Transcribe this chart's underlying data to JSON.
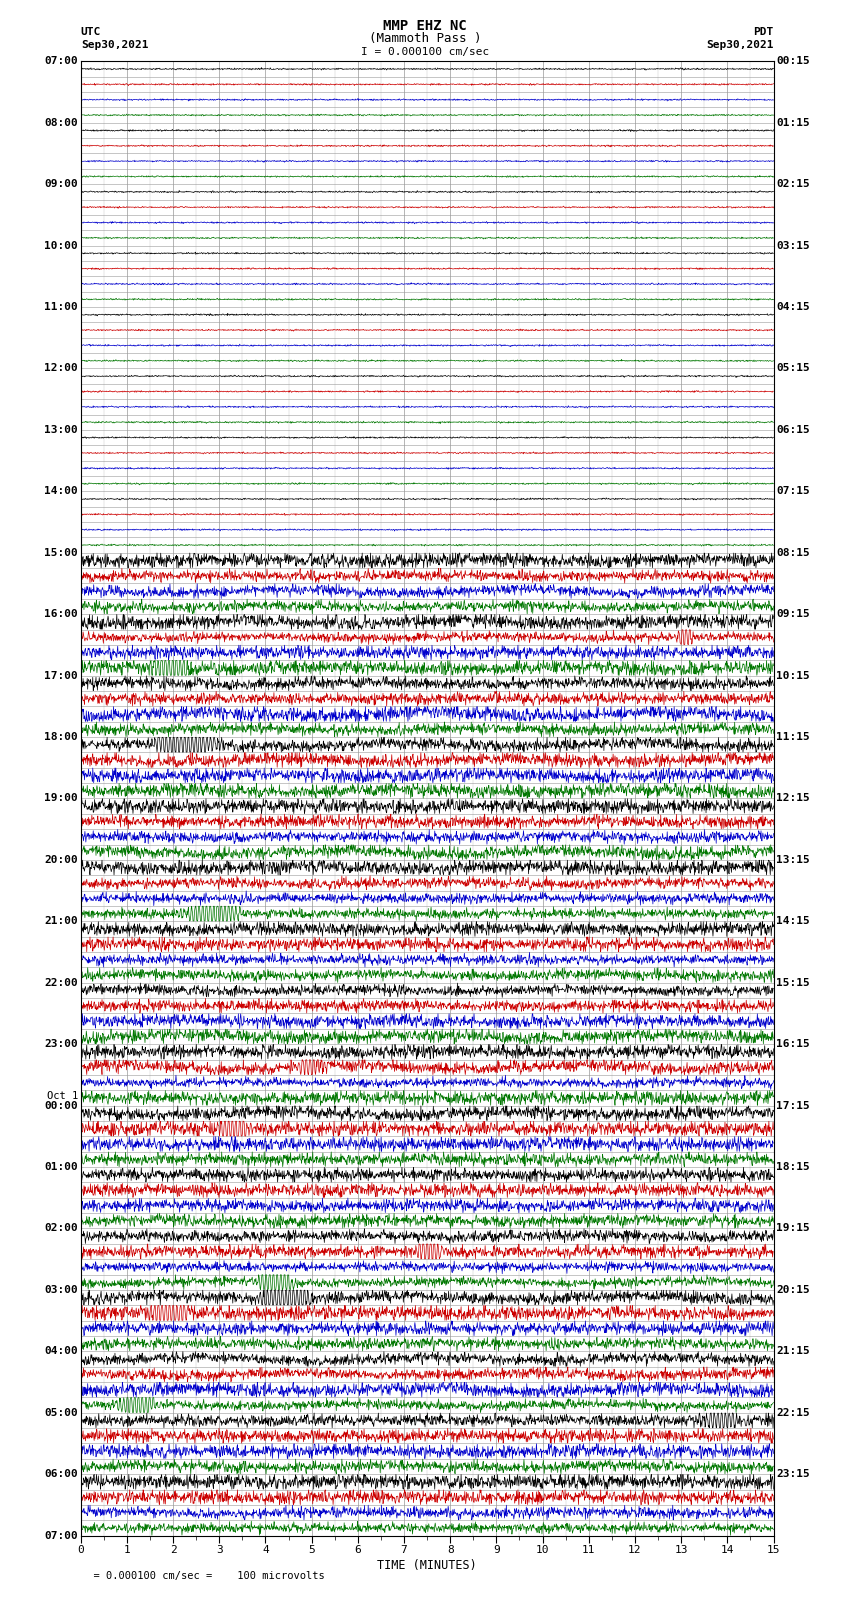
{
  "title_line1": "MMP EHZ NC",
  "title_line2": "(Mammoth Pass )",
  "title_line3": "I = 0.000100 cm/sec",
  "left_label_line1": "UTC",
  "left_label_line2": "Sep30,2021",
  "right_label_line1": "PDT",
  "right_label_line2": "Sep30,2021",
  "bottom_label": "TIME (MINUTES)",
  "scale_label": "= 0.000100 cm/sec =    100 microvolts",
  "xlabel_ticks": [
    0,
    1,
    2,
    3,
    4,
    5,
    6,
    7,
    8,
    9,
    10,
    11,
    12,
    13,
    14,
    15
  ],
  "row_colors_cycle": [
    "#000000",
    "#cc0000",
    "#0000cc",
    "#007700"
  ],
  "background_color": "#ffffff",
  "grid_color": "#999999",
  "figsize": [
    8.5,
    16.13
  ],
  "dpi": 100,
  "total_rows": 96,
  "quiet_rows": 32,
  "samples_per_row": 1500
}
